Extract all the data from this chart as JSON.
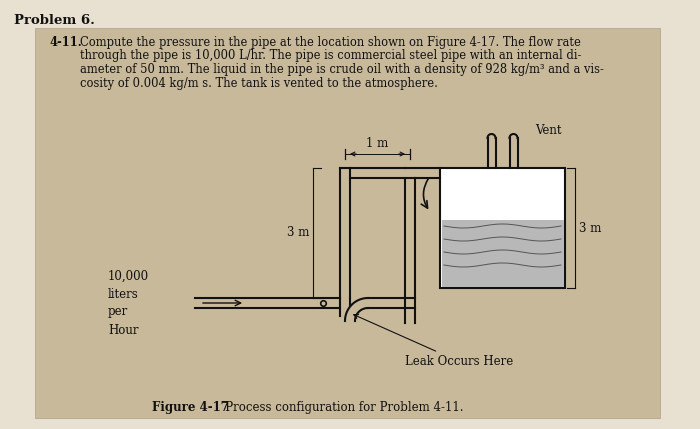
{
  "title": "Problem 6.",
  "problem_number": "4-11.",
  "problem_lines": [
    "Compute the pressure in the pipe at the location shown on Figure 4-17. The flow rate",
    "through the pipe is 10,000 L/hr. The pipe is commercial steel pipe with an internal di-",
    "ameter of 50 mm. The liquid in the pipe is crude oil with a density of 928 kg/m³ and a vis-",
    "cosity of 0.004 kg/m s. The tank is vented to the atmosphere."
  ],
  "figure_caption_bold": "Figure 4-17",
  "figure_caption_rest": "   Process configuration for Problem 4-11.",
  "label_10000": "10,000\nliters\nper\nHour",
  "label_3m_left": "3 m",
  "label_3m_right": "3 m",
  "label_1m": "1 m",
  "label_vent": "Vent",
  "label_leak": "Leak Occurs Here",
  "bg_outer": "#e8e0d0",
  "bg_inner": "#c8b99a",
  "black": "#111111",
  "white": "#ffffff",
  "liquid_grey": "#b8b8b8",
  "pipe_lw": 1.5,
  "pipe_half": 5,
  "text_fs": 8.3,
  "label_fs": 8.5
}
